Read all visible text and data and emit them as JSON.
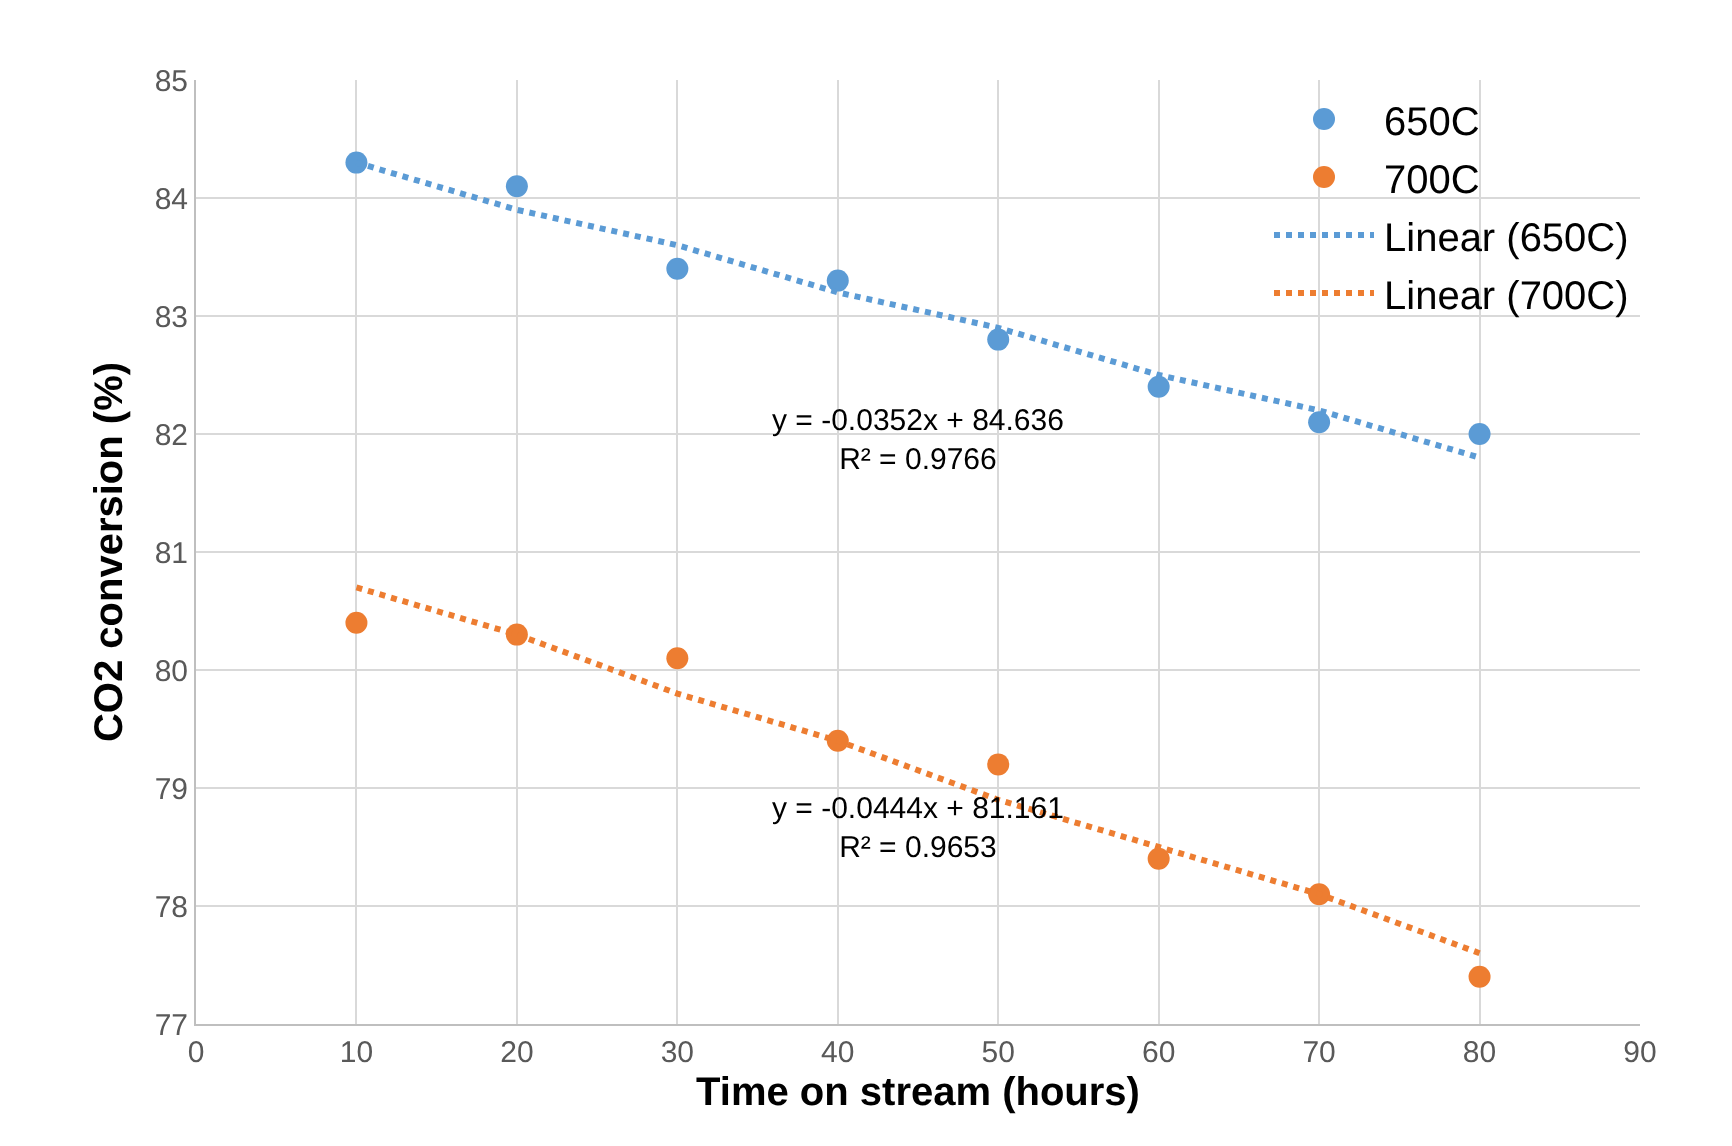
{
  "chart_data": {
    "type": "scatter",
    "xlabel": "Time on stream (hours)",
    "ylabel": "CO2 conversion (%)",
    "x": [
      10,
      20,
      30,
      40,
      50,
      60,
      70,
      80
    ],
    "series": [
      {
        "name": "650C",
        "color": "#5b9bd5",
        "marker": "circle",
        "values": [
          84.3,
          84.1,
          83.4,
          83.3,
          82.8,
          82.4,
          82.1,
          82.0
        ]
      },
      {
        "name": "700C",
        "color": "#ed7d31",
        "marker": "circle",
        "values": [
          80.4,
          80.3,
          80.1,
          79.4,
          79.2,
          78.4,
          78.1,
          77.4
        ]
      },
      {
        "name": "Linear (650C)",
        "color": "#5b9bd5",
        "type": "line",
        "line_style": "dotted",
        "marker": "none",
        "values": [
          84.3,
          83.9,
          83.6,
          83.2,
          82.9,
          82.5,
          82.2,
          81.8
        ]
      },
      {
        "name": "Linear (700C)",
        "color": "#ed7d31",
        "type": "line",
        "line_style": "dotted",
        "marker": "none",
        "values": [
          80.7,
          80.3,
          79.8,
          79.4,
          78.9,
          78.5,
          78.1,
          77.6
        ]
      }
    ],
    "xlim": [
      0,
      90
    ],
    "xticks": [
      0,
      10,
      20,
      30,
      40,
      50,
      60,
      70,
      80,
      90
    ],
    "ylim": [
      77,
      85
    ],
    "yticks": [
      77,
      78,
      79,
      80,
      81,
      82,
      83,
      84,
      85
    ],
    "grid": true,
    "legend": "top right",
    "annotations": [
      "y = -0.0352x + 84.636\nR² = 0.9766",
      "y = -0.0444x + 81.161\nR² = 0.9653"
    ]
  }
}
